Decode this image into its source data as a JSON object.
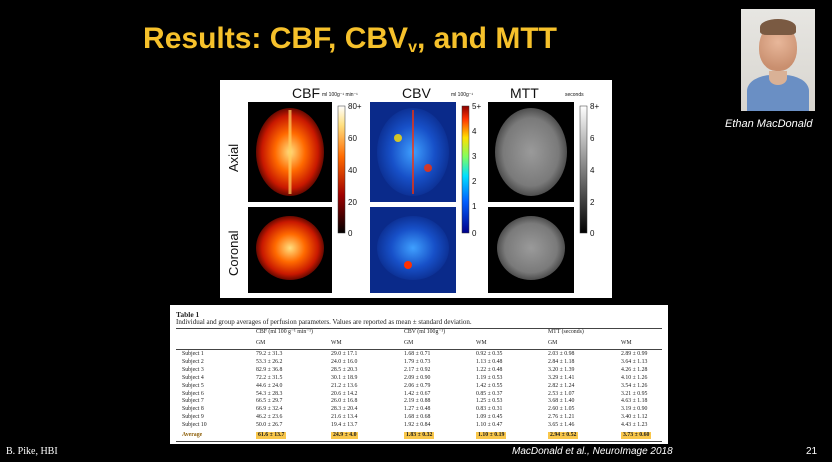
{
  "slide": {
    "title_main": "Results: CBF, CBV",
    "title_sub": "v",
    "title_tail": ", and MTT",
    "photo_caption": "Ethan MacDonald",
    "footer_left": "B. Pike, HBI",
    "footer_citation": "MacDonald et al., NeuroImage 2018",
    "page_number": "21"
  },
  "figure": {
    "col_headers": [
      "CBF",
      "CBV",
      "MTT"
    ],
    "units": [
      "ml 100g⁻¹ min⁻¹",
      "ml 100g⁻¹",
      "seconds"
    ],
    "row_labels": [
      "Axial",
      "Coronal"
    ],
    "cbf_scale": [
      "80+",
      "60",
      "40",
      "20",
      "0"
    ],
    "cbv_scale": [
      "5+",
      "4",
      "3",
      "2",
      "1",
      "0"
    ],
    "mtt_scale": [
      "8+",
      "6",
      "4",
      "2",
      "0"
    ]
  },
  "table": {
    "title": "Table 1",
    "description": "Individual and group averages of perfusion parameters. Values are reported as mean ± standard deviation.",
    "group_headers": [
      "CBF (ml 100 g⁻¹ min⁻¹)",
      "CBV (ml 100g⁻¹)",
      "MTT (seconds)"
    ],
    "sub_headers": [
      "GM",
      "WM",
      "GM",
      "WM",
      "GM",
      "WM"
    ],
    "rows": [
      [
        "Subject 1",
        "79.2 ± 31.3",
        "29.0 ± 17.1",
        "1.68 ± 0.71",
        "0.92 ± 0.35",
        "2.03 ± 0.98",
        "2.89 ± 0.99"
      ],
      [
        "Subject 2",
        "53.3 ± 26.2",
        "24.0 ± 16.0",
        "1.79 ± 0.73",
        "1.13 ± 0.48",
        "2.84 ± 1.18",
        "3.64 ± 1.13"
      ],
      [
        "Subject 3",
        "82.9 ± 36.8",
        "28.5 ± 20.3",
        "2.17 ± 0.92",
        "1.22 ± 0.48",
        "3.20 ± 1.39",
        "4.26 ± 1.28"
      ],
      [
        "Subject 4",
        "72.2 ± 31.5",
        "30.1 ± 18.9",
        "2.09 ± 0.90",
        "1.19 ± 0.53",
        "3.29 ± 1.41",
        "4.10 ± 1.26"
      ],
      [
        "Subject 5",
        "44.6 ± 24.0",
        "21.2 ± 13.6",
        "2.06 ± 0.79",
        "1.42 ± 0.55",
        "2.82 ± 1.24",
        "3.54 ± 1.26"
      ],
      [
        "Subject 6",
        "54.3 ± 28.3",
        "20.6 ± 14.2",
        "1.42 ± 0.67",
        "0.85 ± 0.37",
        "2.53 ± 1.07",
        "3.21 ± 0.95"
      ],
      [
        "Subject 7",
        "66.5 ± 29.7",
        "26.0 ± 16.8",
        "2.19 ± 0.88",
        "1.25 ± 0.53",
        "3.68 ± 1.40",
        "4.63 ± 1.18"
      ],
      [
        "Subject 8",
        "66.9 ± 32.4",
        "28.3 ± 20.4",
        "1.27 ± 0.48",
        "0.83 ± 0.31",
        "2.60 ± 1.05",
        "3.19 ± 0.90"
      ],
      [
        "Subject 9",
        "46.2 ± 23.6",
        "21.6 ± 13.4",
        "1.68 ± 0.68",
        "1.09 ± 0.45",
        "2.76 ± 1.21",
        "3.40 ± 1.12"
      ],
      [
        "Subject 10",
        "50.0 ± 26.7",
        "19.4 ± 13.7",
        "1.92 ± 0.84",
        "1.10 ± 0.47",
        "3.65 ± 1.46",
        "4.43 ± 1.23"
      ]
    ],
    "average": [
      "Average",
      "61.6 ± 13.7",
      "24.9 ± 4.0",
      "1.83 ± 0.32",
      "1.10 ± 0.19",
      "2.94 ± 0.52",
      "3.73 ± 0.60"
    ]
  }
}
